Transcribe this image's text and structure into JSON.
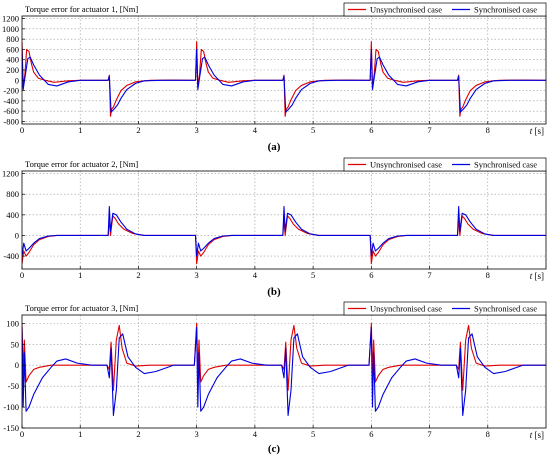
{
  "chart_data": [
    {
      "type": "line",
      "panel": "(a)",
      "title": "Torque error for actuator 1, [Nm]",
      "xlabel": "t [s]",
      "xlim": [
        0,
        9
      ],
      "ylim": [
        -850,
        1250
      ],
      "xticks": [
        0,
        1,
        2,
        3,
        4,
        5,
        6,
        7,
        8
      ],
      "yticks": [
        -800,
        -600,
        -400,
        -200,
        0,
        200,
        400,
        600,
        800,
        1000,
        1200
      ],
      "legend": "top-right",
      "colors": {
        "unsync": "#e00000",
        "sync": "#0000e0"
      },
      "series": [
        {
          "name": "Unsynchronised case",
          "color": "#e00000",
          "x": [
            0,
            0.02,
            0.05,
            0.08,
            0.12,
            0.16,
            0.2,
            0.28,
            0.4,
            0.55,
            0.8,
            1.0,
            1.48,
            1.5,
            1.52,
            1.54,
            1.57,
            1.62,
            1.7,
            1.8,
            1.95,
            2.2,
            2.6,
            2.98,
            3.0,
            3.02,
            3.05,
            3.08,
            3.12,
            3.16,
            3.2,
            3.28,
            3.4,
            3.55,
            3.8,
            4.0,
            4.48,
            4.5,
            4.52,
            4.54,
            4.57,
            4.62,
            4.7,
            4.8,
            4.95,
            5.2,
            5.6,
            5.98,
            6.0,
            6.02,
            6.05,
            6.08,
            6.12,
            6.16,
            6.2,
            6.28,
            6.4,
            6.55,
            6.8,
            7.0,
            7.48,
            7.5,
            7.52,
            7.54,
            7.57,
            7.62,
            7.7,
            7.8,
            7.95,
            8.2,
            8.6,
            9.0
          ],
          "y": [
            750,
            -120,
            120,
            600,
            560,
            330,
            160,
            40,
            0,
            -40,
            -10,
            0,
            0,
            100,
            -700,
            -560,
            -520,
            -380,
            -200,
            -100,
            -30,
            0,
            5,
            0,
            750,
            -120,
            120,
            600,
            560,
            330,
            160,
            40,
            0,
            -40,
            -10,
            0,
            0,
            100,
            -700,
            -560,
            -520,
            -380,
            -200,
            -100,
            -30,
            0,
            5,
            0,
            750,
            -120,
            120,
            600,
            560,
            330,
            160,
            40,
            0,
            -40,
            -10,
            0,
            0,
            100,
            -700,
            -560,
            -520,
            -380,
            -200,
            -100,
            -30,
            0,
            5,
            0
          ]
        },
        {
          "name": "Synchronised case",
          "color": "#0000e0",
          "x": [
            0,
            0.02,
            0.05,
            0.1,
            0.14,
            0.2,
            0.3,
            0.45,
            0.6,
            0.8,
            1.0,
            1.48,
            1.5,
            1.53,
            1.58,
            1.64,
            1.7,
            1.8,
            1.95,
            2.1,
            2.4,
            2.98,
            3.0,
            3.02,
            3.05,
            3.1,
            3.14,
            3.2,
            3.3,
            3.45,
            3.6,
            3.8,
            4.0,
            4.48,
            4.5,
            4.53,
            4.58,
            4.64,
            4.7,
            4.8,
            4.95,
            5.1,
            5.4,
            5.98,
            6.0,
            6.02,
            6.05,
            6.1,
            6.14,
            6.2,
            6.3,
            6.45,
            6.6,
            6.8,
            7.0,
            7.48,
            7.5,
            7.53,
            7.58,
            7.64,
            7.7,
            7.8,
            7.95,
            8.1,
            8.4,
            9.0
          ],
          "y": [
            600,
            -180,
            50,
            420,
            450,
            300,
            100,
            -80,
            -110,
            -30,
            0,
            0,
            80,
            -620,
            -560,
            -480,
            -350,
            -180,
            -60,
            -10,
            0,
            0,
            600,
            -180,
            50,
            420,
            450,
            300,
            100,
            -80,
            -110,
            -30,
            0,
            0,
            80,
            -620,
            -560,
            -480,
            -350,
            -180,
            -60,
            -10,
            0,
            0,
            600,
            -180,
            50,
            420,
            450,
            300,
            100,
            -80,
            -110,
            -30,
            0,
            0,
            80,
            -620,
            -560,
            -480,
            -350,
            -180,
            -60,
            -10,
            0,
            0
          ]
        }
      ]
    },
    {
      "type": "line",
      "panel": "(b)",
      "title": "Torque error for actuator 2, [Nm]",
      "xlabel": "t [s]",
      "xlim": [
        0,
        9
      ],
      "ylim": [
        -650,
        1250
      ],
      "xticks": [
        0,
        1,
        2,
        3,
        4,
        5,
        6,
        7,
        8
      ],
      "yticks": [
        -400,
        0,
        400,
        800,
        1200
      ],
      "legend": "top-right",
      "colors": {
        "unsync": "#e00000",
        "sync": "#0000e0"
      },
      "series": [
        {
          "name": "Unsynchronised case",
          "color": "#e00000",
          "x": [
            0,
            0.03,
            0.07,
            0.12,
            0.2,
            0.3,
            0.45,
            0.6,
            0.9,
            1.48,
            1.5,
            1.52,
            1.56,
            1.6,
            1.66,
            1.75,
            1.9,
            2.1,
            2.5,
            2.98,
            3.0,
            3.03,
            3.07,
            3.12,
            3.2,
            3.3,
            3.45,
            3.6,
            3.9,
            4.48,
            4.5,
            4.52,
            4.56,
            4.6,
            4.66,
            4.75,
            4.9,
            5.1,
            5.5,
            5.98,
            6.0,
            6.03,
            6.07,
            6.12,
            6.2,
            6.3,
            6.45,
            6.6,
            6.9,
            7.48,
            7.5,
            7.52,
            7.56,
            7.6,
            7.66,
            7.75,
            7.9,
            8.1,
            8.5,
            9.0
          ],
          "y": [
            -550,
            -300,
            -400,
            -330,
            -180,
            -80,
            -20,
            0,
            0,
            0,
            320,
            0,
            380,
            330,
            220,
            120,
            40,
            0,
            0,
            0,
            -550,
            -300,
            -400,
            -330,
            -180,
            -80,
            -20,
            0,
            0,
            0,
            320,
            0,
            380,
            330,
            220,
            120,
            40,
            0,
            0,
            0,
            -550,
            -300,
            -400,
            -330,
            -180,
            -80,
            -20,
            0,
            0,
            0,
            320,
            0,
            380,
            330,
            220,
            120,
            40,
            0,
            0,
            0
          ]
        },
        {
          "name": "Synchronised case",
          "color": "#0000e0",
          "x": [
            0,
            0.03,
            0.07,
            0.12,
            0.2,
            0.3,
            0.45,
            0.6,
            0.9,
            1.48,
            1.5,
            1.52,
            1.56,
            1.62,
            1.7,
            1.8,
            1.95,
            2.1,
            2.5,
            2.98,
            3.0,
            3.03,
            3.07,
            3.12,
            3.2,
            3.3,
            3.45,
            3.6,
            3.9,
            4.48,
            4.5,
            4.52,
            4.56,
            4.62,
            4.7,
            4.8,
            4.95,
            5.1,
            5.5,
            5.98,
            6.0,
            6.03,
            6.07,
            6.12,
            6.2,
            6.3,
            6.45,
            6.6,
            6.9,
            7.48,
            7.5,
            7.52,
            7.56,
            7.62,
            7.7,
            7.8,
            7.95,
            8.1,
            8.5,
            9.0
          ],
          "y": [
            -400,
            -150,
            -300,
            -250,
            -150,
            -60,
            -10,
            0,
            0,
            0,
            560,
            80,
            430,
            400,
            260,
            120,
            30,
            0,
            0,
            0,
            -400,
            -150,
            -300,
            -250,
            -150,
            -60,
            -10,
            0,
            0,
            0,
            560,
            80,
            430,
            400,
            260,
            120,
            30,
            0,
            0,
            0,
            -400,
            -150,
            -300,
            -250,
            -150,
            -60,
            -10,
            0,
            0,
            0,
            560,
            80,
            430,
            400,
            260,
            120,
            30,
            0,
            0,
            0
          ]
        }
      ]
    },
    {
      "type": "line",
      "panel": "(c)",
      "title": "Torque error for actuator 3, [Nm]",
      "xlabel": "t [s]",
      "xlim": [
        0,
        9
      ],
      "ylim": [
        -150,
        120
      ],
      "xticks": [
        0,
        1,
        2,
        3,
        4,
        5,
        6,
        7,
        8
      ],
      "yticks": [
        -150,
        -100,
        -50,
        0,
        50,
        100
      ],
      "legend": "top-right",
      "colors": {
        "unsync": "#e00000",
        "sync": "#0000e0"
      },
      "series": [
        {
          "name": "Unsynchronised case",
          "color": "#e00000",
          "x": [
            0,
            0.02,
            0.04,
            0.07,
            0.12,
            0.2,
            0.3,
            0.5,
            0.8,
            1.2,
            1.46,
            1.5,
            1.53,
            1.57,
            1.62,
            1.67,
            1.72,
            1.8,
            1.95,
            2.2,
            2.6,
            2.96,
            3.0,
            3.02,
            3.04,
            3.07,
            3.12,
            3.2,
            3.3,
            3.5,
            3.8,
            4.2,
            4.46,
            4.5,
            4.53,
            4.57,
            4.62,
            4.67,
            4.72,
            4.8,
            4.95,
            5.2,
            5.6,
            5.96,
            6.0,
            6.02,
            6.04,
            6.07,
            6.12,
            6.2,
            6.3,
            6.5,
            6.8,
            7.2,
            7.46,
            7.5,
            7.53,
            7.57,
            7.62,
            7.67,
            7.72,
            7.8,
            7.95,
            8.2,
            8.6,
            9.0
          ],
          "y": [
            100,
            -20,
            60,
            -40,
            -25,
            -10,
            -5,
            0,
            0,
            0,
            0,
            -10,
            55,
            -60,
            60,
            95,
            40,
            5,
            -2,
            0,
            0,
            0,
            100,
            -20,
            60,
            -40,
            -25,
            -10,
            -5,
            0,
            0,
            0,
            0,
            -10,
            55,
            -60,
            60,
            95,
            40,
            5,
            -2,
            0,
            0,
            0,
            100,
            -20,
            60,
            -40,
            -25,
            -10,
            -5,
            0,
            0,
            0,
            0,
            -10,
            55,
            -60,
            60,
            95,
            40,
            5,
            -2,
            0,
            0,
            0
          ]
        },
        {
          "name": "Synchronised case",
          "color": "#0000e0",
          "x": [
            0,
            0.02,
            0.04,
            0.07,
            0.12,
            0.2,
            0.35,
            0.5,
            0.6,
            0.75,
            0.95,
            1.2,
            1.46,
            1.5,
            1.53,
            1.57,
            1.62,
            1.67,
            1.73,
            1.82,
            1.95,
            2.1,
            2.3,
            2.6,
            2.96,
            3.0,
            3.02,
            3.04,
            3.07,
            3.12,
            3.2,
            3.35,
            3.5,
            3.6,
            3.75,
            3.95,
            4.2,
            4.46,
            4.5,
            4.53,
            4.57,
            4.62,
            4.67,
            4.73,
            4.82,
            4.95,
            5.1,
            5.3,
            5.6,
            5.96,
            6.0,
            6.02,
            6.04,
            6.07,
            6.12,
            6.2,
            6.35,
            6.5,
            6.6,
            6.75,
            6.95,
            7.2,
            7.46,
            7.5,
            7.53,
            7.57,
            7.62,
            7.67,
            7.73,
            7.82,
            7.95,
            8.1,
            8.3,
            8.6,
            9.0
          ],
          "y": [
            90,
            -100,
            30,
            -110,
            -100,
            -70,
            -30,
            -5,
            10,
            15,
            5,
            0,
            0,
            -30,
            40,
            -120,
            -60,
            65,
            75,
            20,
            -5,
            -20,
            -15,
            0,
            0,
            90,
            -100,
            30,
            -110,
            -100,
            -70,
            -30,
            -5,
            10,
            15,
            5,
            0,
            0,
            -30,
            40,
            -120,
            -60,
            65,
            75,
            20,
            -5,
            -20,
            -15,
            0,
            0,
            90,
            -100,
            30,
            -110,
            -100,
            -70,
            -30,
            -5,
            10,
            15,
            5,
            0,
            0,
            -30,
            40,
            -120,
            -60,
            65,
            75,
            20,
            -5,
            -20,
            -15,
            0,
            0
          ]
        }
      ]
    }
  ]
}
